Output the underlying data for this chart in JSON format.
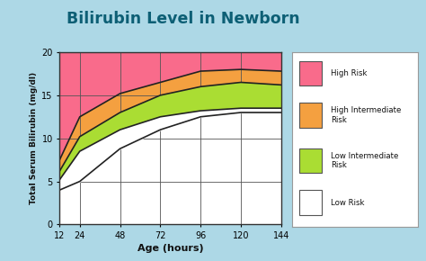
{
  "title": "Bilirubin Level in Newborn",
  "xlabel": "Age (hours)",
  "ylabel": "Total Serum Bilirubin (mg/dl)",
  "background_color": "#add8e6",
  "plot_bg": "#ffffff",
  "x": [
    12,
    24,
    48,
    72,
    96,
    120,
    144
  ],
  "curve_top": [
    20,
    20,
    20,
    20,
    20,
    20,
    20
  ],
  "curve_high_risk_bottom": [
    7.5,
    12.5,
    15.2,
    16.5,
    17.8,
    18.0,
    17.8
  ],
  "curve_high_int_bottom": [
    6.2,
    10.2,
    13.0,
    15.0,
    16.0,
    16.5,
    16.2
  ],
  "curve_low_int_bottom": [
    5.2,
    8.5,
    11.0,
    12.5,
    13.2,
    13.5,
    13.5
  ],
  "curve_low_risk_bottom": [
    4.0,
    5.0,
    8.8,
    11.0,
    12.5,
    13.0,
    13.0
  ],
  "color_high_risk": "#f96b8b",
  "color_high_int": "#f4a040",
  "color_low_int": "#aadd33",
  "color_low_risk": "#ffffff",
  "line_color": "#222222",
  "title_color": "#0d5f75",
  "ylim": [
    0,
    20
  ],
  "xlim": [
    12,
    144
  ],
  "xticks": [
    12,
    24,
    48,
    72,
    96,
    120,
    144
  ],
  "yticks": [
    0,
    5,
    10,
    15,
    20
  ],
  "legend_labels": [
    "High Risk",
    "High Intermediate\nRisk",
    "Low Intermediate\nRisk",
    "Low Risk"
  ],
  "legend_colors": [
    "#f96b8b",
    "#f4a040",
    "#aadd33",
    "#ffffff"
  ]
}
